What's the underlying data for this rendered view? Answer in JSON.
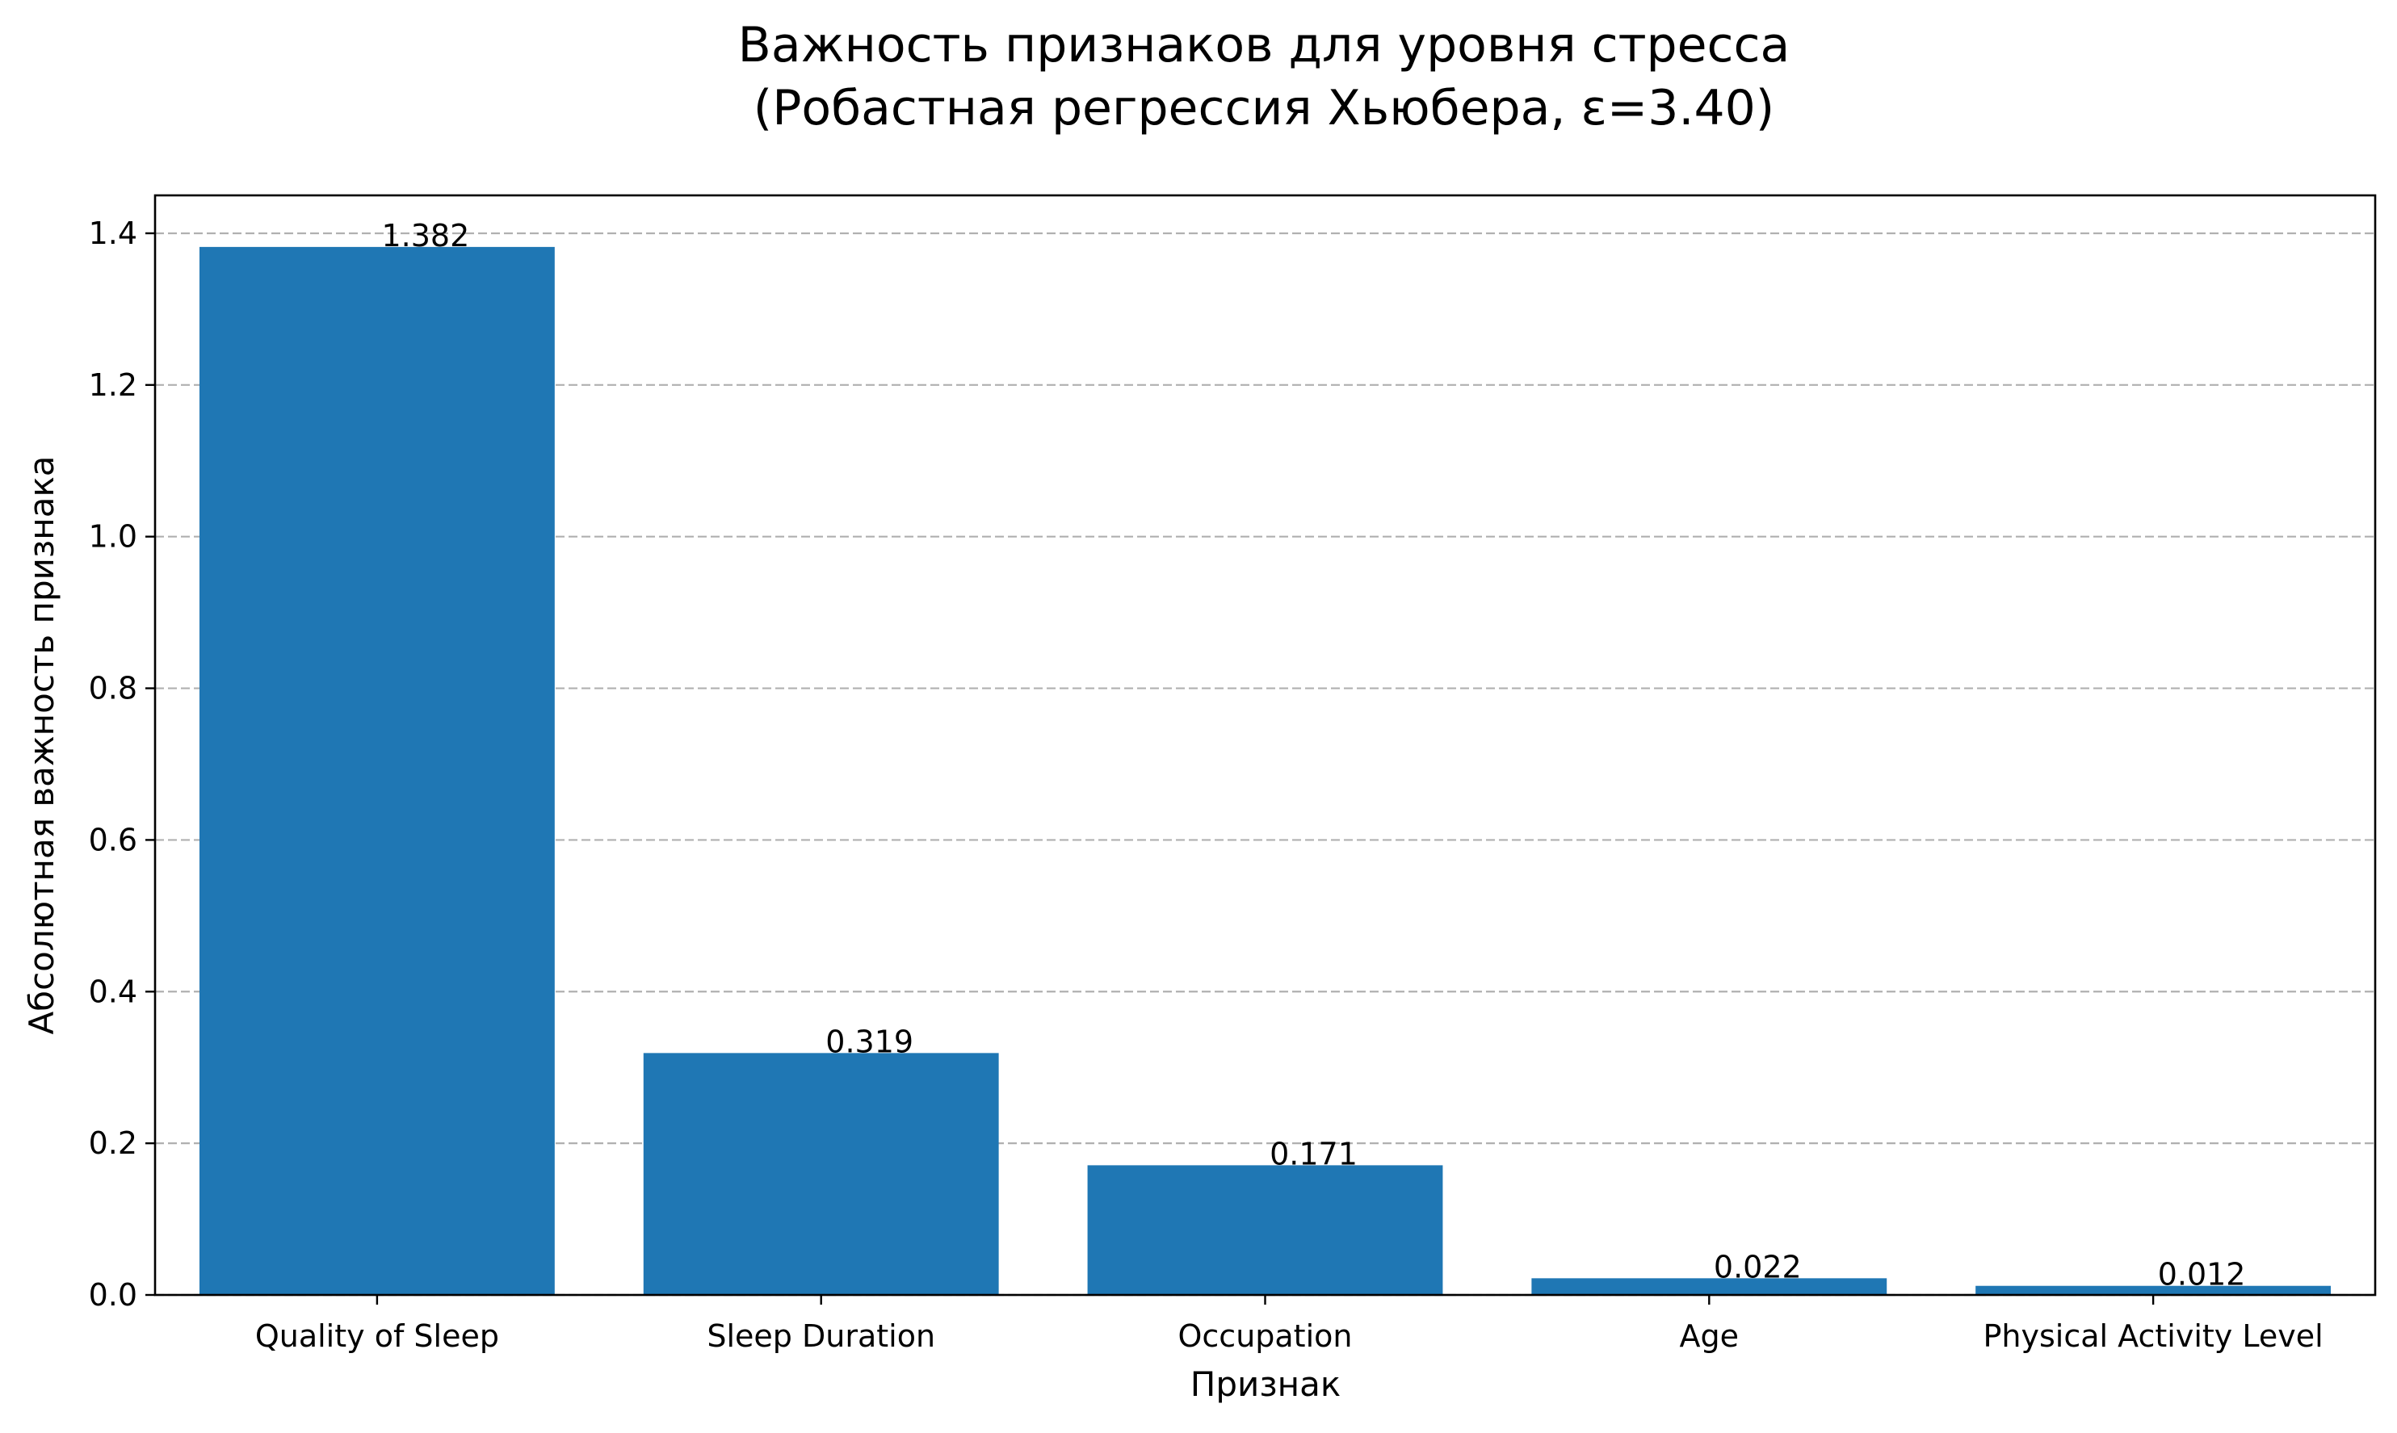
{
  "chart_data": {
    "type": "bar",
    "title": "Важность признаков для уровня стресса",
    "subtitle": "(Робастная регрессия Хьюбера, ε=3.40)",
    "xlabel": "Признак",
    "ylabel": "Абсолютная важность признака",
    "categories": [
      "Quality of Sleep",
      "Sleep Duration",
      "Occupation",
      "Age",
      "Physical Activity Level"
    ],
    "values": [
      1.382,
      0.319,
      0.171,
      0.022,
      0.012
    ],
    "value_labels": [
      "1.382",
      "0.319",
      "0.171",
      "0.022",
      "0.012"
    ],
    "ylim": [
      0,
      1.45
    ],
    "yticks": [
      0.0,
      0.2,
      0.4,
      0.6,
      0.8,
      1.0,
      1.2,
      1.4
    ],
    "ytick_labels": [
      "0.0",
      "0.2",
      "0.4",
      "0.6",
      "0.8",
      "1.0",
      "1.2",
      "1.4"
    ],
    "grid": "y, dashed",
    "legend": "none",
    "bar_color": "#1f77b4"
  }
}
